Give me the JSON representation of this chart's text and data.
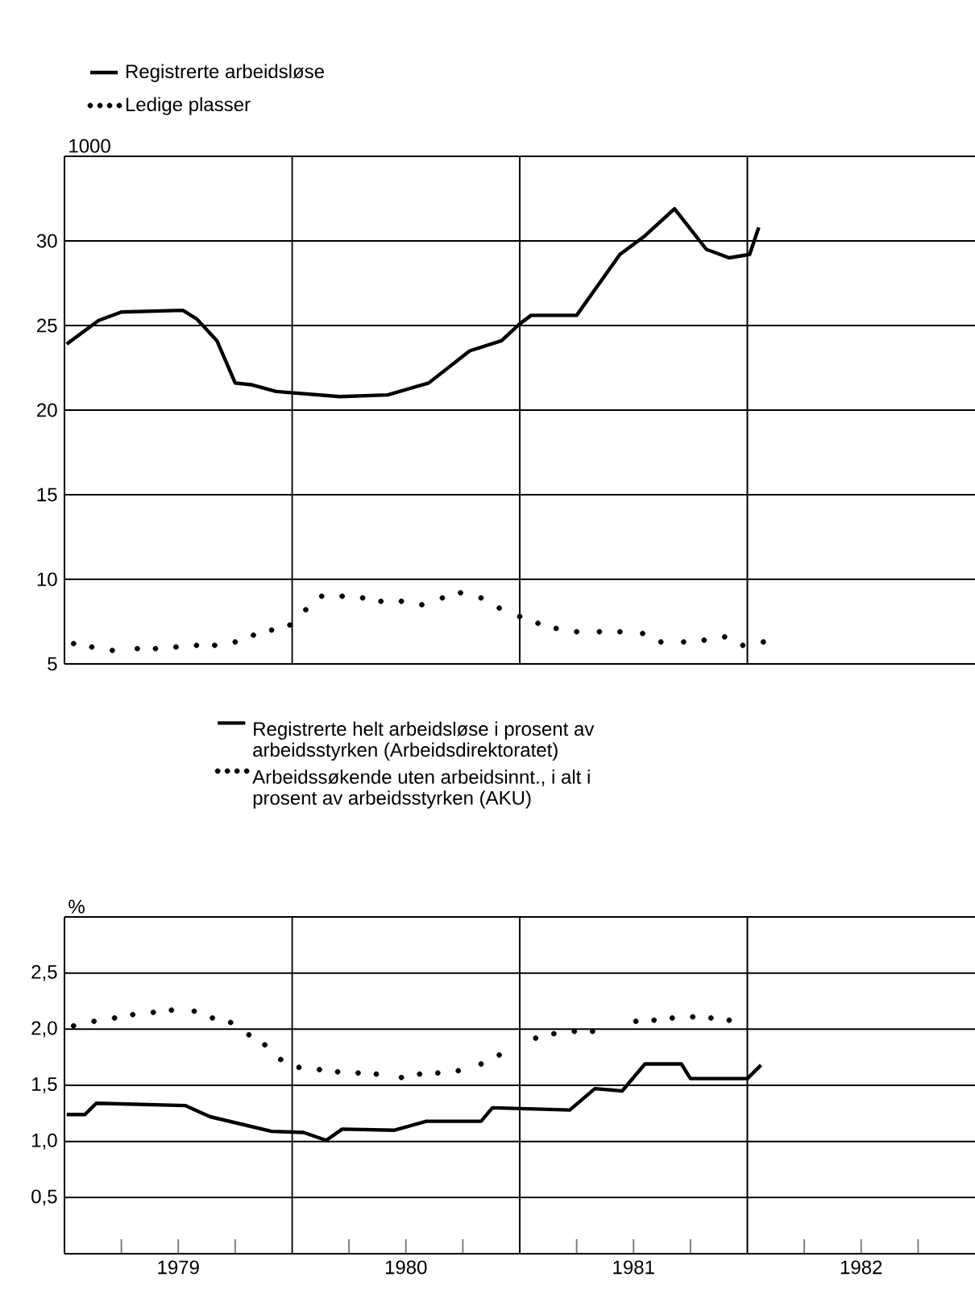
{
  "chart_data": [
    {
      "type": "line",
      "ylabel": "1000",
      "xlim": [
        1979,
        1983
      ],
      "ylim": [
        5,
        35
      ],
      "yticks": [
        5,
        10,
        15,
        20,
        25,
        30,
        {
          "value": 35,
          "label": null
        }
      ],
      "tick_labels": "y",
      "grid": "y",
      "legend": "top",
      "ref_lines": [
        {
          "axis": "x",
          "value": 1980
        },
        {
          "axis": "x",
          "value": 1981
        },
        {
          "axis": "x",
          "value": 1982
        }
      ],
      "series": [
        {
          "name": "Registrerte arbeidsløse",
          "type": "line",
          "color": "#000000",
          "line_style": "solid",
          "x": [
            1979.01,
            1979.15,
            1979.25,
            1979.52,
            1979.58,
            1979.67,
            1979.75,
            1979.82,
            1979.93,
            1980.21,
            1980.42,
            1980.6,
            1980.78,
            1980.92,
            1981.0,
            1981.05,
            1981.25,
            1981.44,
            1981.55,
            1981.68,
            1981.82,
            1981.92,
            1982.01,
            1982.05
          ],
          "values": [
            23.9,
            25.3,
            25.8,
            25.9,
            25.4,
            24.1,
            21.6,
            21.5,
            21.1,
            20.8,
            20.9,
            21.6,
            23.5,
            24.1,
            25.1,
            25.6,
            25.6,
            29.2,
            30.3,
            31.9,
            29.5,
            29.0,
            29.2,
            30.8
          ]
        },
        {
          "name": "Ledige plasser",
          "type": "scatter",
          "color": "#000000",
          "marker": "circle",
          "x": [
            1979.04,
            1979.12,
            1979.21,
            1979.32,
            1979.4,
            1979.49,
            1979.58,
            1979.66,
            1979.75,
            1979.83,
            1979.91,
            1979.99,
            1980.06,
            1980.13,
            1980.22,
            1980.31,
            1980.39,
            1980.48,
            1980.57,
            1980.66,
            1980.74,
            1980.83,
            1980.91,
            1981.0,
            1981.08,
            1981.16,
            1981.25,
            1981.35,
            1981.44,
            1981.54,
            1981.62,
            1981.72,
            1981.81,
            1981.9,
            1981.98,
            1982.07
          ],
          "values": [
            6.2,
            6.0,
            5.8,
            5.9,
            5.9,
            6.0,
            6.1,
            6.1,
            6.3,
            6.7,
            7.0,
            7.3,
            8.2,
            9.0,
            9.0,
            8.9,
            8.7,
            8.7,
            8.5,
            8.9,
            9.2,
            8.9,
            8.3,
            7.8,
            7.4,
            7.1,
            6.9,
            6.9,
            6.9,
            6.8,
            6.3,
            6.3,
            6.4,
            6.6,
            6.1,
            6.3
          ]
        }
      ]
    },
    {
      "type": "line",
      "ylabel": "%",
      "xlim": [
        1979,
        1983
      ],
      "ylim": [
        0,
        3
      ],
      "yticks": [
        {
          "value": 0.5,
          "label": "0,5"
        },
        {
          "value": 1,
          "label": "1,0"
        },
        {
          "value": 1.5,
          "label": "1,5"
        },
        {
          "value": 2,
          "label": "2,0"
        },
        {
          "value": 2.5,
          "label": "2,5"
        },
        {
          "value": 3,
          "label": null
        }
      ],
      "xticks": [
        {
          "value": 1979.25,
          "label": null
        },
        {
          "value": 1979.5,
          "label": "1979"
        },
        {
          "value": 1979.75,
          "label": null
        },
        {
          "value": 1980.25,
          "label": null
        },
        {
          "value": 1980.5,
          "label": "1980"
        },
        {
          "value": 1980.75,
          "label": null
        },
        {
          "value": 1981.25,
          "label": null
        },
        {
          "value": 1981.5,
          "label": "1981"
        },
        {
          "value": 1981.75,
          "label": null
        },
        {
          "value": 1982.25,
          "label": null
        },
        {
          "value": 1982.5,
          "label": "1982"
        },
        {
          "value": 1982.75,
          "label": null
        }
      ],
      "grid": "y",
      "legend": "top",
      "ref_lines": [
        {
          "axis": "x",
          "value": 1980
        },
        {
          "axis": "x",
          "value": 1981
        },
        {
          "axis": "x",
          "value": 1982
        }
      ],
      "series": [
        {
          "name": "Registrerte helt arbeidsløse i prosent av arbeidsstyrken (Arbeidsdirektoratet)",
          "type": "line",
          "color": "#000000",
          "line_style": "solid",
          "x": [
            1979.01,
            1979.09,
            1979.14,
            1979.53,
            1979.64,
            1979.91,
            1980.05,
            1980.15,
            1980.22,
            1980.45,
            1980.59,
            1980.83,
            1980.88,
            1981.22,
            1981.33,
            1981.45,
            1981.55,
            1981.71,
            1981.75,
            1982.0,
            1982.06
          ],
          "values": [
            1.24,
            1.24,
            1.34,
            1.32,
            1.22,
            1.09,
            1.08,
            1.01,
            1.11,
            1.1,
            1.18,
            1.18,
            1.3,
            1.28,
            1.47,
            1.45,
            1.69,
            1.69,
            1.56,
            1.56,
            1.68
          ]
        },
        {
          "name": "Arbeidssøkende uten arbeidsinnt., i alt i prosent av arbeidsstyrken (AKU)",
          "type": "scatter",
          "color": "#000000",
          "marker": "circle",
          "x": [
            1979.04,
            1979.13,
            1979.22,
            1979.3,
            1979.39,
            1979.47,
            1979.57,
            1979.65,
            1979.73,
            1979.81,
            1979.88,
            1979.95,
            1980.03,
            1980.12,
            1980.2,
            1980.29,
            1980.37,
            1980.48,
            1980.56,
            1980.64,
            1980.73,
            1980.83,
            1980.91,
            1981.07,
            1981.15,
            1981.24,
            1981.32,
            1981.51,
            1981.59,
            1981.67,
            1981.76,
            1981.84,
            1981.92
          ],
          "values": [
            2.03,
            2.07,
            2.1,
            2.13,
            2.15,
            2.17,
            2.16,
            2.1,
            2.06,
            1.95,
            1.86,
            1.73,
            1.66,
            1.64,
            1.62,
            1.61,
            1.6,
            1.57,
            1.6,
            1.61,
            1.63,
            1.69,
            1.77,
            1.92,
            1.96,
            1.98,
            1.98,
            2.07,
            2.08,
            2.1,
            2.11,
            2.1,
            2.08
          ]
        }
      ]
    }
  ]
}
